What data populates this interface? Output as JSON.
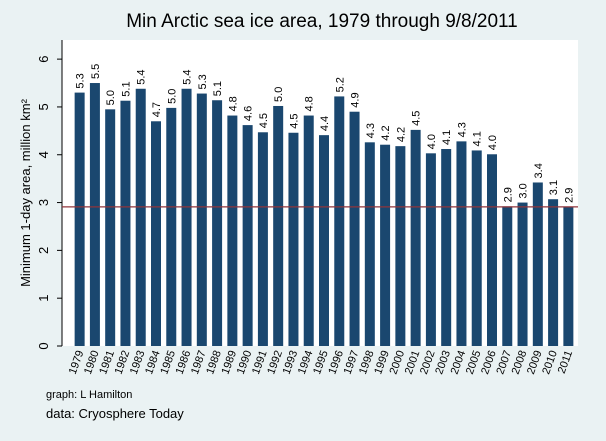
{
  "chart_data": {
    "type": "bar",
    "title": "Min Arctic sea ice area, 1979 through 9/8/2011",
    "y_label": "Minimum 1-day area, million km²",
    "notes": [
      "graph:  L Hamilton",
      "data:  Cryosphere Today"
    ],
    "categories": [
      "1979",
      "1980",
      "1981",
      "1982",
      "1983",
      "1984",
      "1985",
      "1986",
      "1987",
      "1988",
      "1989",
      "1990",
      "1991",
      "1992",
      "1993",
      "1994",
      "1995",
      "1996",
      "1997",
      "1998",
      "1999",
      "2000",
      "2001",
      "2002",
      "2003",
      "2004",
      "2005",
      "2006",
      "2007",
      "2008",
      "2009",
      "2010",
      "2011"
    ],
    "values": [
      5.3,
      5.5,
      4.95,
      5.13,
      5.38,
      4.7,
      4.98,
      5.38,
      5.28,
      5.14,
      4.82,
      4.62,
      4.47,
      5.02,
      4.46,
      4.82,
      4.41,
      5.22,
      4.9,
      4.26,
      4.21,
      4.18,
      4.52,
      4.03,
      4.12,
      4.28,
      4.09,
      4.01,
      2.92,
      3.0,
      3.42,
      3.07,
      2.91
    ],
    "value_labels": [
      "5.3",
      "5.5",
      "5.0",
      "5.1",
      "5.4",
      "4.7",
      "5.0",
      "5.4",
      "5.3",
      "5.1",
      "4.8",
      "4.6",
      "4.5",
      "5.0",
      "4.5",
      "4.8",
      "4.4",
      "5.2",
      "4.9",
      "4.3",
      "4.2",
      "4.2",
      "4.5",
      "4.0",
      "4.1",
      "4.3",
      "4.1",
      "4.0",
      "2.9",
      "3.0",
      "3.4",
      "3.1",
      "2.9"
    ],
    "color": "#1a476f",
    "reference_line": 2.91,
    "reference_color": "#90353b",
    "ylim": [
      0,
      6.4
    ],
    "yticks": [
      0,
      1,
      2,
      3,
      4,
      5,
      6
    ],
    "grid": false
  }
}
